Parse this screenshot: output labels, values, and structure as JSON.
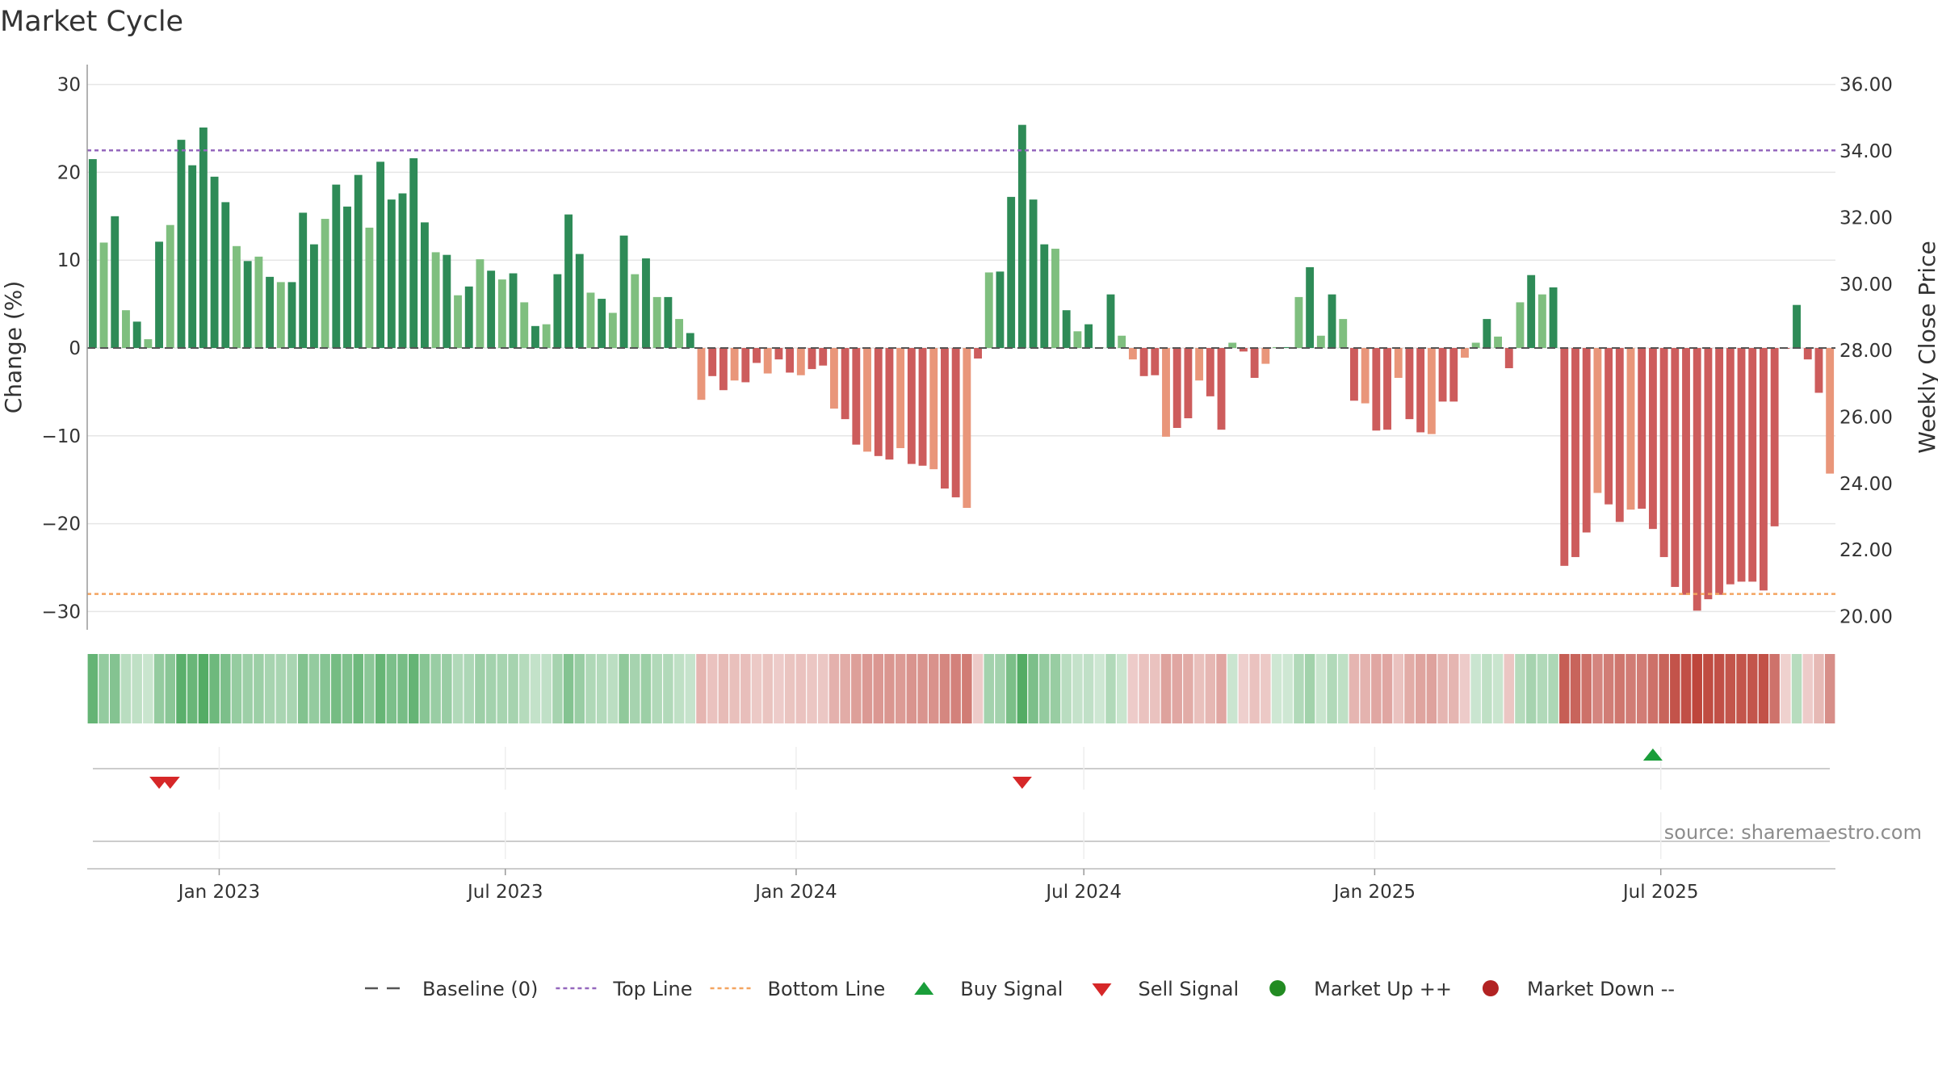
{
  "chart_data": {
    "type": "bar",
    "title": "Market Cycle",
    "ylabel_left": "Change (%)",
    "ylabel_right": "Weekly Close Price",
    "source": "source: sharemaestro.com",
    "ylim": [
      -32,
      32
    ],
    "y_ticks": [
      30,
      20,
      10,
      0,
      -10,
      -20,
      -30
    ],
    "y_tick_labels": [
      "30",
      "20",
      "10",
      "0",
      "−10",
      "−20",
      "−30"
    ],
    "y2lim": [
      19.6,
      36.6
    ],
    "y2_ticks": [
      "36.00",
      "34.00",
      "32.00",
      "30.00",
      "28.00",
      "26.00",
      "24.00",
      "22.00",
      "20.00"
    ],
    "x_ticks": [
      "Jan 2023",
      "Jul 2023",
      "Jan 2024",
      "Jul 2024",
      "Jan 2025",
      "Jul 2025"
    ],
    "top_line": 22.5,
    "bottom_line": -28,
    "grid": true,
    "legend_placement": "bottom",
    "colors": {
      "up_strong": "#2e8b57",
      "up_light": "#7fbf7f",
      "down_strong": "#cd5c5c",
      "down_light": "#e9967a",
      "top_line": "#9467bd",
      "bottom_line": "#f4a460",
      "baseline": "#555555",
      "buy": "#1a9e3a",
      "sell": "#d62728",
      "market_up": "#228b22",
      "market_down": "#b22222"
    },
    "values": [
      21.5,
      12,
      15,
      4.3,
      3,
      1,
      12.1,
      14,
      23.7,
      20.8,
      25.1,
      19.5,
      16.6,
      11.6,
      9.9,
      10.4,
      8.1,
      7.5,
      7.5,
      15.4,
      11.8,
      14.7,
      18.6,
      16.1,
      19.7,
      13.7,
      21.2,
      16.9,
      17.6,
      21.6,
      14.3,
      10.9,
      10.6,
      6,
      7,
      10.1,
      8.8,
      7.8,
      8.5,
      5.2,
      2.5,
      2.7,
      8.4,
      15.2,
      10.7,
      6.3,
      5.6,
      4,
      12.8,
      8.4,
      10.2,
      5.8,
      5.8,
      3.3,
      1.7,
      -5.9,
      -3.2,
      -4.8,
      -3.7,
      -3.9,
      -1.7,
      -2.9,
      -1.3,
      -2.8,
      -3.1,
      -2.4,
      -2,
      -6.9,
      -8.1,
      -11,
      -11.8,
      -12.3,
      -12.7,
      -11.4,
      -13.2,
      -13.4,
      -13.8,
      -16,
      -17,
      -18.2,
      -1.2,
      8.6,
      8.7,
      17.2,
      25.4,
      16.9,
      11.8,
      11.3,
      4.3,
      1.9,
      2.7,
      0.1,
      6.1,
      1.4,
      -1.3,
      -3.2,
      -3.1,
      -10.1,
      -9.1,
      -8,
      -3.7,
      -5.5,
      -9.3,
      0.6,
      -0.4,
      -3.4,
      -1.8,
      0.1,
      0.1,
      5.8,
      9.2,
      1.4,
      6.1,
      3.3,
      -6,
      -6.3,
      -9.4,
      -9.3,
      -3.4,
      -8.1,
      -9.6,
      -9.8,
      -6.1,
      -6.1,
      -1.1,
      0.6,
      3.3,
      1.3,
      -2.3,
      5.2,
      8.3,
      6.1,
      6.9,
      -24.8,
      -23.8,
      -21,
      -16.5,
      -17.8,
      -19.8,
      -18.4,
      -18.3,
      -20.6,
      -23.8,
      -27.2,
      -28.1,
      -29.9,
      -28.6,
      -28.1,
      -26.9,
      -26.6,
      -26.6,
      -27.6,
      -20.3,
      -0.1,
      4.9,
      -1.3,
      -5.1,
      -14.3
    ],
    "signals": [
      {
        "type": "sell",
        "date": "2022-11-24"
      },
      {
        "type": "sell",
        "date": "2022-12-01"
      },
      {
        "type": "sell",
        "date": "2024-05-23"
      },
      {
        "type": "buy",
        "date": "2025-06-26"
      }
    ],
    "legend": [
      {
        "key": "baseline",
        "label": "Baseline (0)"
      },
      {
        "key": "top",
        "label": "Top Line"
      },
      {
        "key": "bottom",
        "label": "Bottom Line"
      },
      {
        "key": "buy",
        "label": "Buy Signal"
      },
      {
        "key": "sell",
        "label": "Sell Signal"
      },
      {
        "key": "up",
        "label": "Market Up ++"
      },
      {
        "key": "down",
        "label": "Market Down --"
      }
    ]
  }
}
